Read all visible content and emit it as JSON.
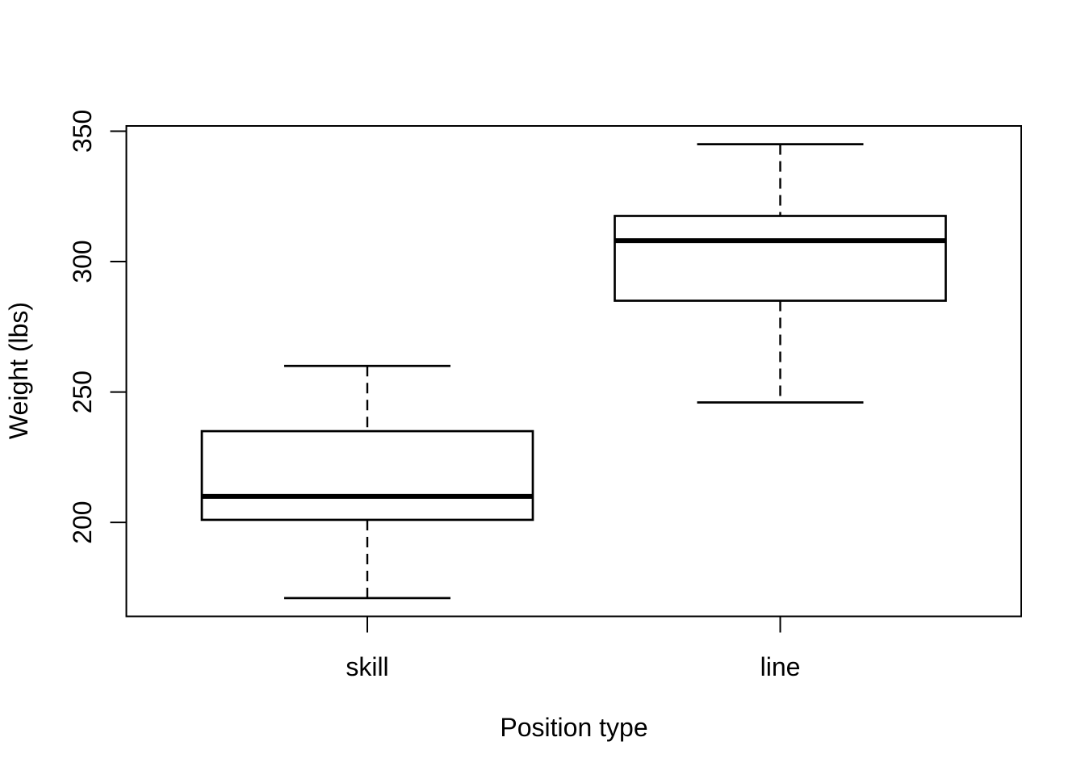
{
  "figure": {
    "background": "#ffffff",
    "stroke_color": "#000000"
  },
  "chart_data": {
    "type": "boxplot",
    "title": "",
    "xlabel": "Position type",
    "ylabel": "Weight (lbs)",
    "categories": [
      "skill",
      "line"
    ],
    "series": [
      {
        "name": "skill",
        "min": 171,
        "q1": 201,
        "median": 210,
        "q3": 235,
        "max": 260,
        "outliers": []
      },
      {
        "name": "line",
        "min": 246,
        "q1": 285,
        "median": 308,
        "q3": 317.5,
        "max": 345,
        "outliers": []
      }
    ],
    "y_ticks": [
      200,
      250,
      300,
      350
    ],
    "ylim": [
      164,
      352
    ],
    "grid": "off",
    "legend": "none",
    "orientation": "vertical",
    "box_fill": "#ffffff",
    "line_color": "#000000"
  }
}
